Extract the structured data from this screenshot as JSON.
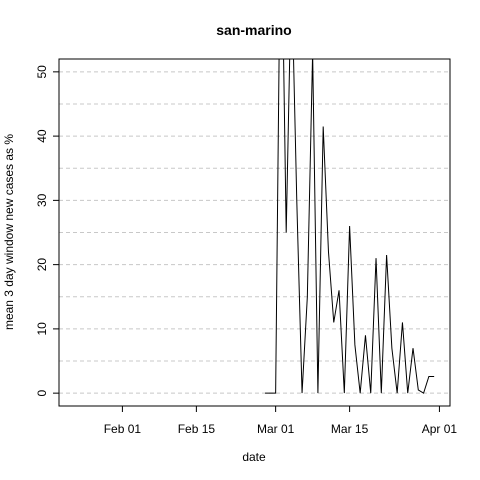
{
  "chart_data": {
    "type": "line",
    "title": "san-marino",
    "x_label": "date",
    "y_label": "mean  3  day window new cases as %",
    "x": [
      59,
      60,
      61,
      62,
      63,
      64,
      65,
      66,
      67,
      68,
      69,
      70,
      71,
      72,
      73,
      74,
      75,
      76,
      77,
      78,
      79,
      80,
      81,
      82,
      83,
      84,
      85,
      86,
      87,
      88,
      89,
      90,
      91
    ],
    "series": [
      {
        "name": "san-marino",
        "color": "#000000",
        "values": [
          0,
          0,
          0,
          80,
          25,
          66,
          30,
          0,
          15,
          53,
          0,
          41.5,
          22,
          11,
          16,
          0,
          26,
          7.5,
          0,
          9,
          0,
          21,
          0,
          21.5,
          7,
          0,
          11,
          0,
          7,
          0.5,
          0,
          2.6,
          2.6
        ]
      }
    ],
    "xlim": [
      20,
      94
    ],
    "xticks": [
      {
        "value": 32,
        "label": "Feb 01"
      },
      {
        "value": 46,
        "label": "Feb 15"
      },
      {
        "value": 61,
        "label": "Mar 01"
      },
      {
        "value": 75,
        "label": "Mar 15"
      },
      {
        "value": 92,
        "label": "Apr 01"
      }
    ],
    "ylim": [
      -2,
      52
    ],
    "yticks": [
      0,
      10,
      20,
      30,
      40,
      50
    ],
    "grid": true,
    "ygrid": [
      0,
      5,
      10,
      15,
      20,
      25,
      30,
      35,
      40,
      45,
      50
    ]
  }
}
